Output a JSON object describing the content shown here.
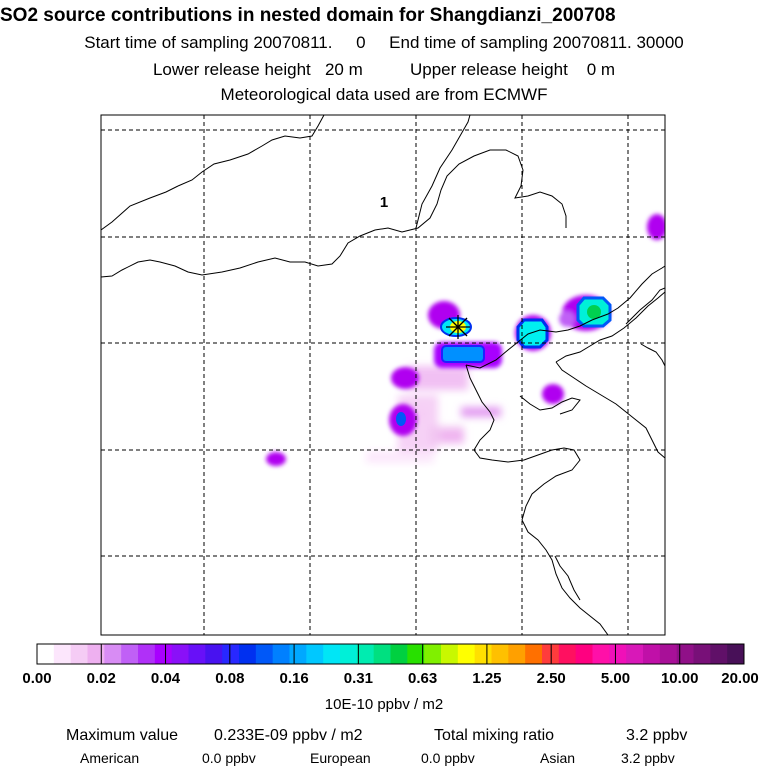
{
  "title": "SO2 source contributions in nested domain for Shangdianzi_200708",
  "sampling": {
    "start_label": "Start time of sampling",
    "start_value": "20070811.     0",
    "end_label": "End time of sampling",
    "end_value": "20070811. 30000"
  },
  "release": {
    "lower_label": "Lower release height",
    "lower_value": "20 m",
    "upper_label": "Upper release height",
    "upper_value": "0 m"
  },
  "meteo": "Meteorological data used are from ECMWF",
  "map": {
    "region_label": "1",
    "station_marker": "receptor-star-icon",
    "colors": {
      "coast": "#000000",
      "grid": "#000000",
      "plume_purple": "#b000f0",
      "plume_blue": "#0050ff",
      "plume_cyan": "#00f0f0",
      "plume_green": "#00d050",
      "plume_yellow": "#ffff00"
    }
  },
  "colorbar": {
    "ticks": [
      "0.00",
      "0.02",
      "0.04",
      "0.08",
      "0.16",
      "0.31",
      "0.63",
      "1.25",
      "2.50",
      "5.00",
      "10.00",
      "20.00"
    ],
    "colors": [
      "#ffffff",
      "#fce6fc",
      "#f5ccf5",
      "#eeb0f0",
      "#d88cf4",
      "#c060f6",
      "#b030f8",
      "#a800ff",
      "#8a10f8",
      "#6810f8",
      "#4812f0",
      "#2828ff",
      "#0030f0",
      "#0058f8",
      "#0080ff",
      "#00a8ff",
      "#00c8ff",
      "#00e6f6",
      "#00f0d8",
      "#00ecb0",
      "#00e080",
      "#00d040",
      "#28e000",
      "#80f000",
      "#c8f800",
      "#ffff00",
      "#ffe000",
      "#ffc000",
      "#ffa000",
      "#ff7000",
      "#ff3c3c",
      "#ff1060",
      "#ff0080",
      "#ff10a8",
      "#f010b8",
      "#d818b8",
      "#c010a8",
      "#a81098",
      "#901088",
      "#781078",
      "#601068",
      "#481058"
    ],
    "units": "10E-10 ppbv / m2"
  },
  "footer": {
    "max_label": "Maximum value",
    "max_value": "0.233E-09 ppbv / m2",
    "total_label": "Total mixing ratio",
    "total_value": "3.2 ppbv",
    "american_label": "American",
    "american_value": "0.0 ppbv",
    "european_label": "European",
    "european_value": "0.0 ppbv",
    "asian_label": "Asian",
    "asian_value": "3.2 ppbv"
  }
}
